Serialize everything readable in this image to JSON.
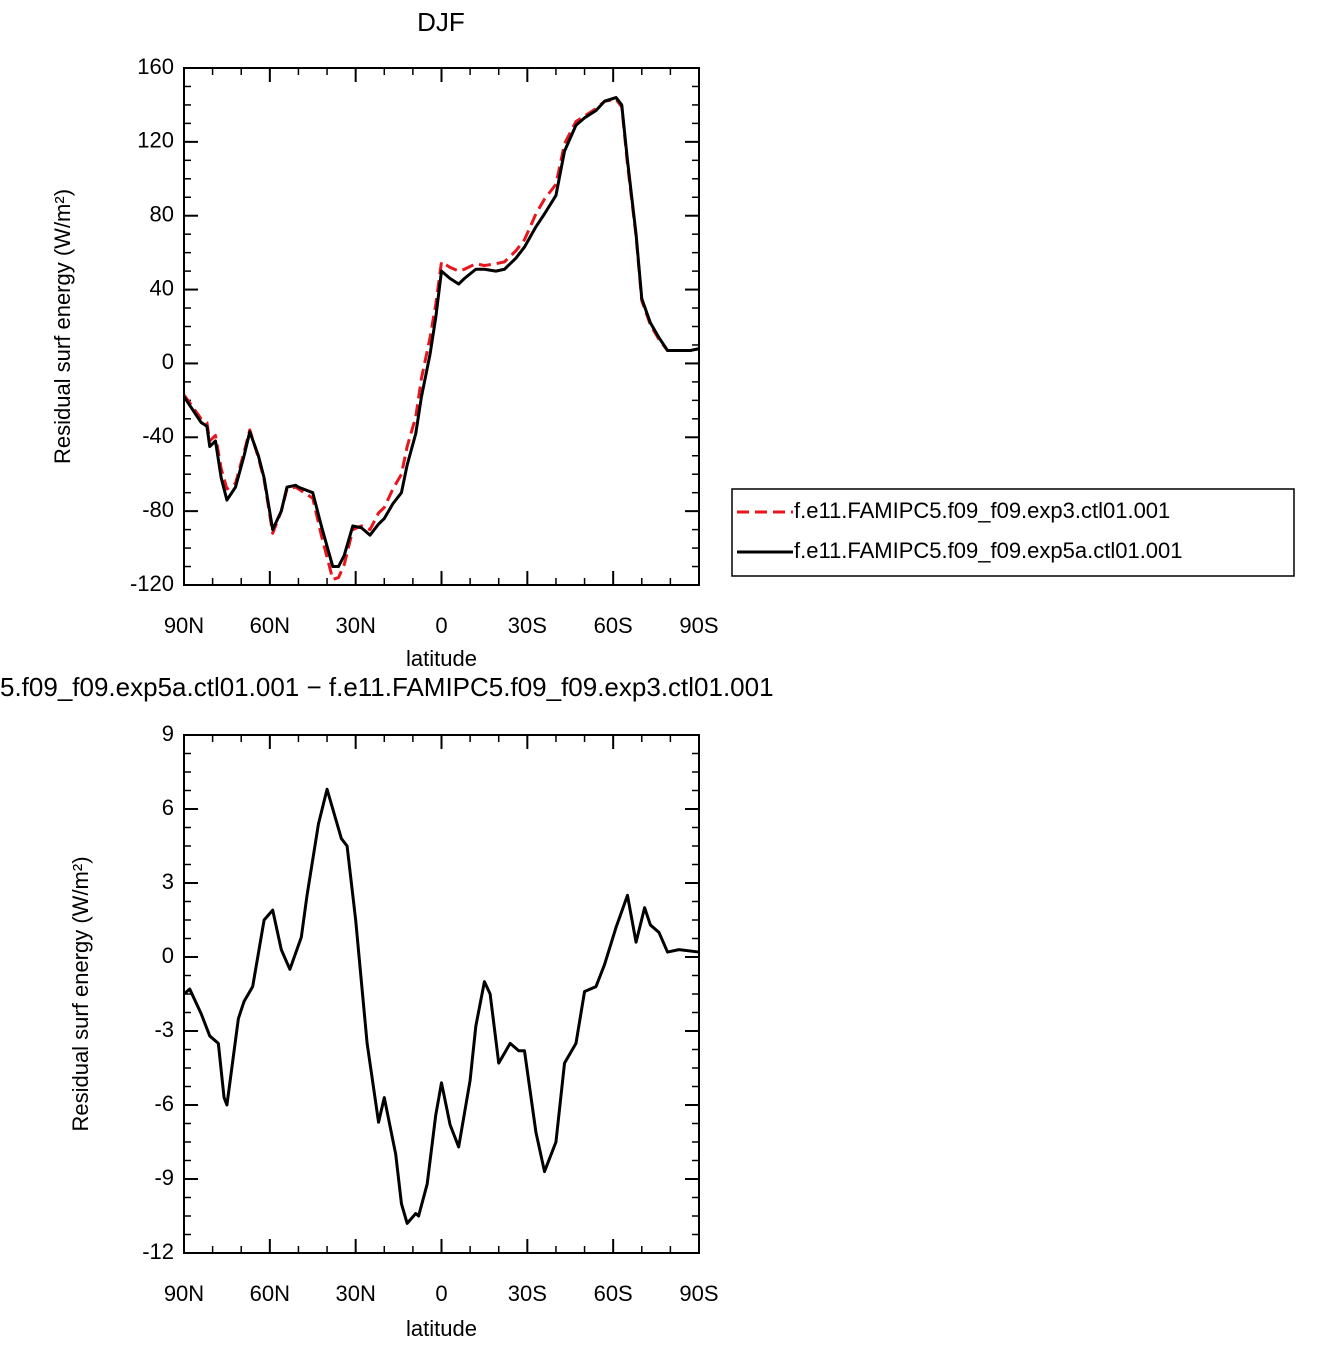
{
  "chart_data": [
    {
      "type": "line",
      "title": "DJF",
      "xlabel": "latitude",
      "ylabel": "Residual surf energy (W/m²)",
      "x": [
        90,
        84,
        82,
        81,
        79,
        77,
        75,
        72,
        69,
        67,
        64,
        62,
        59,
        56,
        54,
        51,
        50,
        45,
        42,
        38,
        36,
        34,
        31,
        28,
        25,
        22,
        20,
        17,
        14,
        12,
        9,
        7,
        4,
        2,
        0,
        -3,
        -6,
        -8,
        -12,
        -15,
        -19,
        -22,
        -26,
        -29,
        -33,
        -36,
        -40,
        -43,
        -47,
        -50,
        -54,
        -57,
        -61,
        -63,
        -65,
        -68,
        -70,
        -73,
        -76,
        -79,
        -83,
        -87,
        -90
      ],
      "series": [
        {
          "name": "f.e11.FAMIPC5.f09_f09.exp3.ctl01.001",
          "color": "#e8161c",
          "style": "dashed",
          "values": [
            -17,
            -30,
            -32,
            -42,
            -39,
            -57,
            -68,
            -65,
            -48,
            -36,
            -51,
            -63,
            -92,
            -80,
            -68,
            -67,
            -68,
            -73,
            -93,
            -117,
            -116,
            -109,
            -90,
            -88,
            -90,
            -81,
            -78,
            -68,
            -60,
            -45,
            -29,
            -8,
            14,
            32,
            55,
            52,
            50,
            51,
            54,
            53,
            54,
            55,
            61,
            67,
            81,
            89,
            97,
            119,
            131,
            134,
            138,
            142,
            143,
            139,
            108,
            69,
            34,
            21,
            13,
            7,
            7,
            7,
            8
          ]
        },
        {
          "name": "f.e11.FAMIPC5.f09_f09.exp5a.ctl01.001",
          "color": "#000000",
          "style": "solid",
          "values": [
            -18,
            -32,
            -34,
            -45,
            -42,
            -62,
            -74,
            -67,
            -50,
            -37,
            -50,
            -62,
            -90,
            -80,
            -67,
            -66,
            -67,
            -70,
            -88,
            -110,
            -110,
            -104,
            -88,
            -89,
            -93,
            -87,
            -84,
            -76,
            -70,
            -55,
            -38,
            -18,
            5,
            25,
            50,
            46,
            43,
            46,
            51,
            51,
            50,
            51,
            57,
            63,
            74,
            81,
            91,
            115,
            129,
            133,
            137,
            142,
            144,
            140,
            110,
            70,
            35,
            22,
            14,
            7,
            7,
            7,
            8
          ]
        }
      ],
      "xlim": [
        90,
        -90
      ],
      "xticks": [
        {
          "value": 90,
          "label": "90N"
        },
        {
          "value": 60,
          "label": "60N"
        },
        {
          "value": 30,
          "label": "30N"
        },
        0,
        {
          "value": -30,
          "label": "30S"
        },
        {
          "value": -60,
          "label": "60S"
        },
        {
          "value": -90,
          "label": "90S"
        }
      ],
      "ylim": [
        -120,
        160
      ],
      "yticks": [
        160,
        120,
        80,
        40,
        0,
        -40,
        -80,
        -120
      ],
      "legend": "right"
    },
    {
      "type": "line",
      "title": "5.f09_f09.exp5a.ctl01.001 − f.e11.FAMIPC5.f09_f09.exp3.ctl01.001",
      "xlabel": "latitude",
      "ylabel": "Residual surf energy (W/m²)",
      "x": [
        90,
        88,
        84,
        81,
        78,
        76,
        75,
        71,
        69,
        66,
        62,
        59,
        56,
        53,
        49,
        47,
        43,
        40,
        35,
        33,
        30,
        26,
        22,
        20,
        16,
        14,
        12,
        9,
        8,
        5,
        2,
        0,
        -3,
        -6,
        -10,
        -12,
        -15,
        -17,
        -20,
        -24,
        -27,
        -29,
        -33,
        -36,
        -40,
        -43,
        -47,
        -50,
        -54,
        -57,
        -61,
        -65,
        -68,
        -71,
        -73,
        -76,
        -79,
        -83,
        -90
      ],
      "series": [
        {
          "color": "#000000",
          "style": "solid",
          "values": [
            -1.5,
            -1.3,
            -2.3,
            -3.2,
            -3.5,
            -5.7,
            -6,
            -2.5,
            -1.8,
            -1.2,
            1.5,
            1.9,
            0.3,
            -0.5,
            0.8,
            2.5,
            5.4,
            6.8,
            4.8,
            4.5,
            1.5,
            -3.5,
            -6.7,
            -5.7,
            -8,
            -10,
            -10.8,
            -10.4,
            -10.5,
            -9.2,
            -6.4,
            -5.1,
            -6.8,
            -7.7,
            -5,
            -2.8,
            -1,
            -1.5,
            -4.3,
            -3.5,
            -3.8,
            -3.8,
            -7.1,
            -8.7,
            -7.5,
            -4.3,
            -3.5,
            -1.4,
            -1.2,
            -0.3,
            1.2,
            2.5,
            0.6,
            2,
            1.3,
            1,
            0.2,
            0.3,
            0.2
          ]
        }
      ],
      "xlim": [
        90,
        -90
      ],
      "xticks": [
        {
          "value": 90,
          "label": "90N"
        },
        {
          "value": 60,
          "label": "60N"
        },
        {
          "value": 30,
          "label": "30N"
        },
        0,
        {
          "value": -30,
          "label": "30S"
        },
        {
          "value": -60,
          "label": "60S"
        },
        {
          "value": -90,
          "label": "90S"
        }
      ],
      "ylim": [
        -12,
        9
      ],
      "yticks": [
        9,
        6,
        3,
        0,
        -3,
        -6,
        -9,
        -12
      ]
    }
  ]
}
